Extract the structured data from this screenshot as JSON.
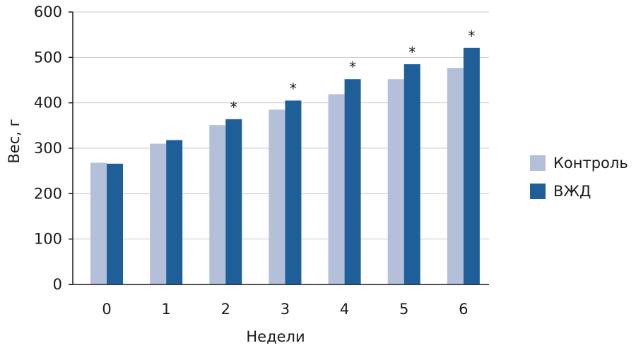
{
  "chart_data": {
    "type": "bar",
    "title": "",
    "xlabel": "Недели",
    "ylabel": "Вес, г",
    "ylim": [
      0,
      600
    ],
    "yticks": [
      0,
      100,
      200,
      300,
      400,
      500,
      600
    ],
    "categories": [
      "0",
      "1",
      "2",
      "3",
      "4",
      "5",
      "6"
    ],
    "series": [
      {
        "name": "Контроль",
        "color": "#b4bfd9",
        "values": [
          268,
          310,
          351,
          385,
          419,
          452,
          477
        ]
      },
      {
        "name": "ВЖД",
        "color": "#1f5f99",
        "values": [
          266,
          318,
          364,
          405,
          452,
          485,
          521
        ]
      }
    ],
    "significance_marker": "*",
    "significant_categories": [
      "2",
      "3",
      "4",
      "5",
      "6"
    ],
    "grid": true,
    "legend_position": "right"
  }
}
